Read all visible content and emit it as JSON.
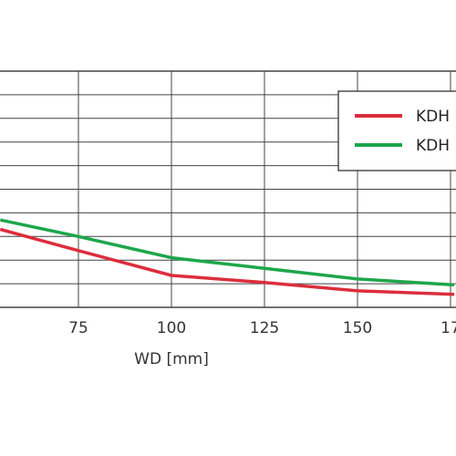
{
  "chart_data": {
    "type": "line",
    "xlabel": "WD [mm]",
    "x_tick_labels": [
      "75",
      "100",
      "125",
      "150",
      "17"
    ],
    "xlim": [
      54,
      176
    ],
    "ylim": [
      0,
      10
    ],
    "grid": true,
    "legend_position": "top-right, clipped",
    "series": [
      {
        "name": "KDH",
        "color": "#dc2d3c",
        "x": [
          54,
          75,
          100,
          125,
          150,
          176
        ],
        "y": [
          3.3,
          2.4,
          1.35,
          1.05,
          0.7,
          0.55
        ]
      },
      {
        "name": "KDH",
        "color": "#1ea64b",
        "x": [
          54,
          75,
          100,
          125,
          150,
          176
        ],
        "y": [
          3.7,
          3.0,
          2.1,
          1.65,
          1.2,
          0.95
        ]
      }
    ]
  }
}
